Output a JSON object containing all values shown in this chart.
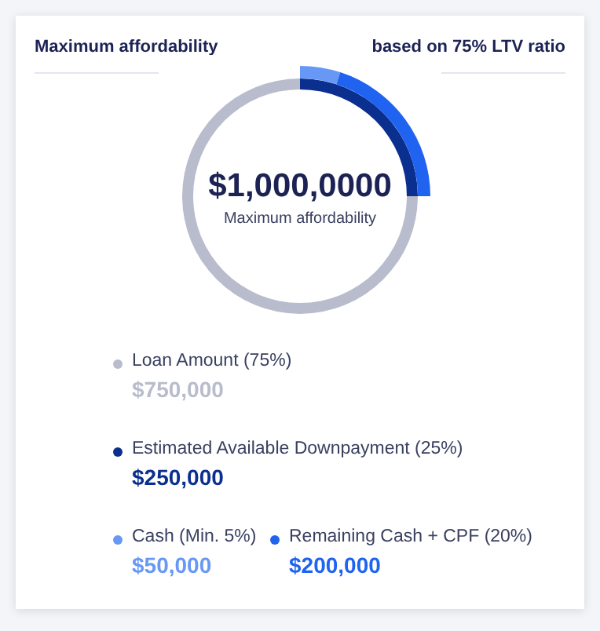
{
  "chart_data": {
    "type": "donut",
    "title": "Maximum affordability",
    "subtitle": "based on 75% LTV ratio",
    "categories": [
      "Loan Amount (75%)",
      "Estimated Available Downpayment (25%)",
      "Cash (Min. 5%)",
      "Remaining Cash + CPF (20%)"
    ],
    "colors": [
      "#b8bccc",
      "#0b2f8f",
      "#6898f5",
      "#1f63f0"
    ],
    "series": [
      {
        "values": [
          75,
          25,
          null,
          null
        ]
      },
      {
        "values": [
          null,
          null,
          5,
          20
        ]
      }
    ],
    "value_labels": [
      "$750,000",
      "$250,000",
      "$50,000",
      "$200,000"
    ],
    "legend": "bottom",
    "annotations": [
      "$1,000,0000",
      "Maximum affordability"
    ]
  }
}
